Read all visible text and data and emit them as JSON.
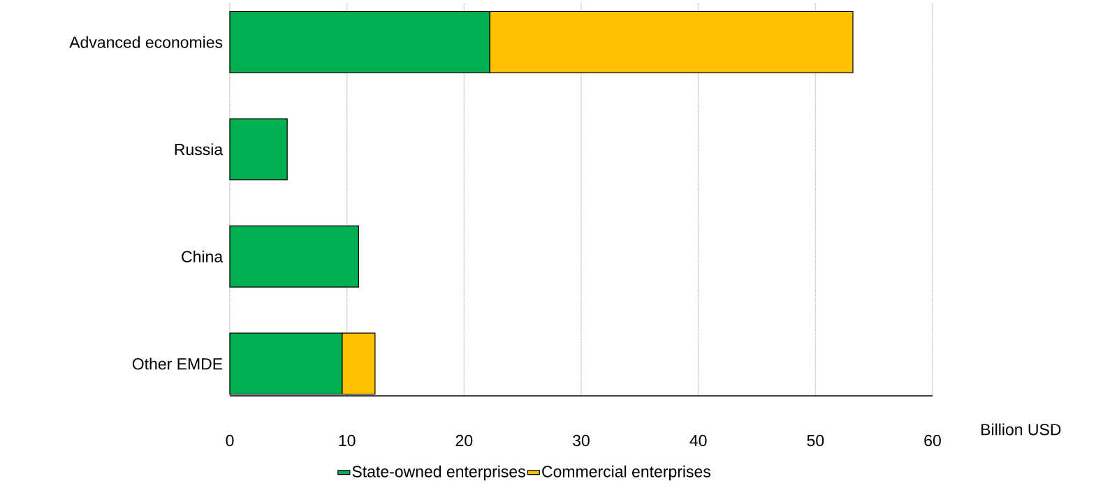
{
  "chart_data": {
    "type": "bar",
    "orientation": "horizontal",
    "stacked": true,
    "categories": [
      "Advanced economies",
      "Russia",
      "China",
      "Other EMDE"
    ],
    "series": [
      {
        "name": "State-owned enterprises",
        "color": "#00b050",
        "values": [
          22.2,
          4.9,
          11.0,
          9.6
        ]
      },
      {
        "name": "Commercial enterprises",
        "color": "#ffc000",
        "values": [
          31.0,
          null,
          null,
          2.8
        ]
      }
    ],
    "xlim": [
      0,
      60
    ],
    "xticks": [
      0,
      10,
      20,
      30,
      40,
      50,
      60
    ],
    "xlabel": "Billion USD",
    "grid": "x",
    "legend": "bottom"
  }
}
